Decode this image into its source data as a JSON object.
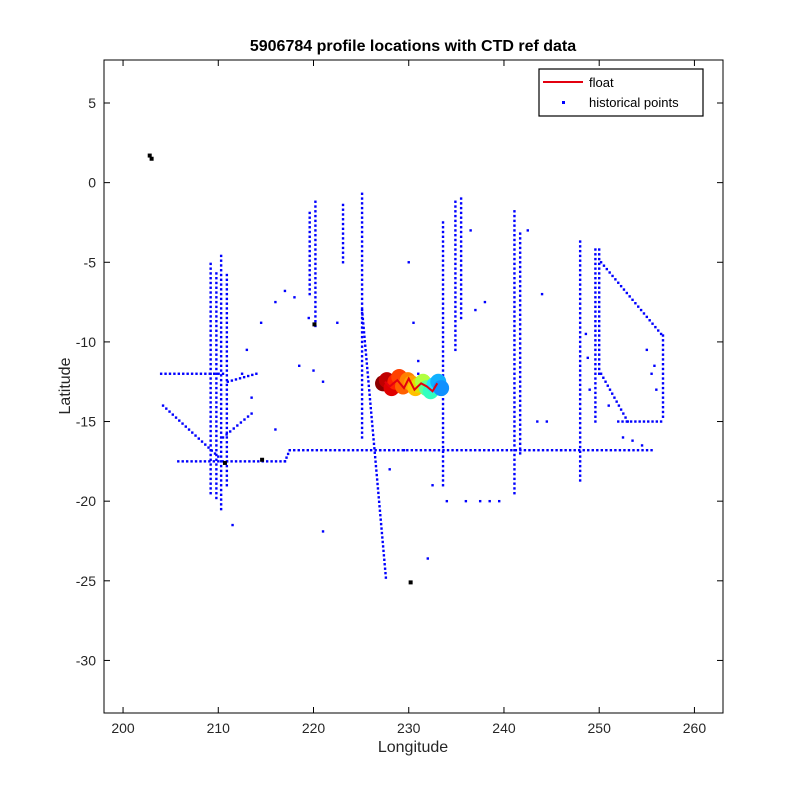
{
  "chart_data": {
    "type": "scatter",
    "title": "5906784 profile locations with CTD ref data",
    "xlabel": "Longitude",
    "ylabel": "Latitude",
    "xlim": [
      198,
      263
    ],
    "ylim": [
      -33.3,
      7.7
    ],
    "xticks": [
      200,
      210,
      220,
      230,
      240,
      250,
      260
    ],
    "yticks": [
      5,
      0,
      -5,
      -10,
      -15,
      -20,
      -25,
      -30
    ],
    "grid": false,
    "legend": {
      "position": "top-right",
      "entries": [
        "float",
        "historical points"
      ]
    },
    "colors": {
      "float_line": "#e3000f",
      "historical": "#0000ff",
      "axis": "#000000"
    },
    "series": [
      {
        "name": "float",
        "type": "line",
        "x": [
          227.5,
          228.0,
          228.8,
          229.5,
          230.0,
          230.6,
          231.3,
          231.9,
          232.5,
          233.0
        ],
        "y": [
          -12.5,
          -12.8,
          -12.4,
          -12.9,
          -12.3,
          -13.0,
          -12.6,
          -12.8,
          -13.1,
          -12.6
        ]
      },
      {
        "name": "historical points",
        "type": "scatter",
        "groups": [
          {
            "kind": "vline",
            "x": 209.2,
            "y0": -19.5,
            "y1": -5
          },
          {
            "kind": "vline",
            "x": 209.8,
            "y0": -19.8,
            "y1": -5.5
          },
          {
            "kind": "vline",
            "x": 210.3,
            "y0": -20.5,
            "y1": -4.5
          },
          {
            "kind": "vline",
            "x": 210.9,
            "y0": -19.0,
            "y1": -5.8
          },
          {
            "kind": "vline",
            "x": 225.1,
            "y0": -16.0,
            "y1": -0.7
          },
          {
            "kind": "line",
            "x0": 225.1,
            "y0": -8.0,
            "x1": 227.6,
            "y1": -24.8
          },
          {
            "kind": "vline",
            "x": 220.2,
            "y0": -9.0,
            "y1": -1.0
          },
          {
            "kind": "vline",
            "x": 219.6,
            "y0": -7.0,
            "y1": -1.8
          },
          {
            "kind": "vline",
            "x": 223.1,
            "y0": -5.0,
            "y1": -1.2
          },
          {
            "kind": "vline",
            "x": 234.9,
            "y0": -10.5,
            "y1": -1.0
          },
          {
            "kind": "vline",
            "x": 235.5,
            "y0": -8.5,
            "y1": -1.0
          },
          {
            "kind": "vline",
            "x": 233.6,
            "y0": -19.0,
            "y1": -2.3
          },
          {
            "kind": "vline",
            "x": 241.1,
            "y0": -19.5,
            "y1": -1.8
          },
          {
            "kind": "vline",
            "x": 241.7,
            "y0": -17.0,
            "y1": -3.0
          },
          {
            "kind": "vline",
            "x": 248.0,
            "y0": -18.7,
            "y1": -3.5
          },
          {
            "kind": "vline",
            "x": 249.6,
            "y0": -15.0,
            "y1": -4.0
          },
          {
            "kind": "vline",
            "x": 250.0,
            "y0": -12.0,
            "y1": -4.0
          },
          {
            "kind": "vline",
            "x": 256.7,
            "y0": -14.7,
            "y1": -9.5
          },
          {
            "kind": "line",
            "x0": 250.2,
            "y0": -5.0,
            "x1": 256.5,
            "y1": -9.5
          },
          {
            "kind": "line",
            "x0": 205.8,
            "y0": -17.5,
            "x1": 217.0,
            "y1": -17.5
          },
          {
            "kind": "line",
            "x0": 217.0,
            "y0": -17.5,
            "x1": 217.5,
            "y1": -16.8
          },
          {
            "kind": "line",
            "x0": 217.5,
            "y0": -16.8,
            "x1": 255.5,
            "y1": -16.8
          },
          {
            "kind": "line",
            "x0": 204.0,
            "y0": -12.0,
            "x1": 210.5,
            "y1": -12.0
          },
          {
            "kind": "line",
            "x0": 204.2,
            "y0": -14.0,
            "x1": 210.0,
            "y1": -17.2
          },
          {
            "kind": "line",
            "x0": 250.2,
            "y0": -12.0,
            "x1": 253.0,
            "y1": -15.0
          },
          {
            "kind": "line",
            "x0": 252.0,
            "y0": -15.0,
            "x1": 256.5,
            "y1": -15.0
          },
          {
            "kind": "line",
            "x0": 211.0,
            "y0": -12.5,
            "x1": 214.0,
            "y1": -12.0
          },
          {
            "kind": "line",
            "x0": 210.5,
            "y0": -16.0,
            "x1": 213.5,
            "y1": -14.5
          }
        ],
        "points": [
          [
            219.5,
            -8.5
          ],
          [
            218.0,
            -7.2
          ],
          [
            217.0,
            -6.8
          ],
          [
            216.0,
            -7.5
          ],
          [
            214.5,
            -8.8
          ],
          [
            213.0,
            -10.5
          ],
          [
            212.5,
            -12.0
          ],
          [
            213.5,
            -13.5
          ],
          [
            211.5,
            -21.5
          ],
          [
            216.0,
            -15.5
          ],
          [
            218.5,
            -11.5
          ],
          [
            220.0,
            -11.8
          ],
          [
            221.0,
            -12.5
          ],
          [
            221.0,
            -21.9
          ],
          [
            222.5,
            -8.8
          ],
          [
            230.0,
            -5.0
          ],
          [
            230.5,
            -8.8
          ],
          [
            231.0,
            -11.2
          ],
          [
            229.5,
            -16.8
          ],
          [
            228.0,
            -18.0
          ],
          [
            232.5,
            -19.0
          ],
          [
            232.0,
            -23.6
          ],
          [
            234.0,
            -20.0
          ],
          [
            236.0,
            -20.0
          ],
          [
            237.5,
            -20.0
          ],
          [
            238.5,
            -20.0
          ],
          [
            239.5,
            -20.0
          ],
          [
            236.5,
            -3.0
          ],
          [
            237.0,
            -8.0
          ],
          [
            238.0,
            -7.5
          ],
          [
            242.5,
            -3.0
          ],
          [
            244.0,
            -7.0
          ],
          [
            243.5,
            -15.0
          ],
          [
            244.5,
            -15.0
          ],
          [
            246.0,
            -16.8
          ],
          [
            248.6,
            -9.5
          ],
          [
            248.8,
            -11.0
          ],
          [
            249.0,
            -13.0
          ],
          [
            251.0,
            -14.0
          ],
          [
            252.5,
            -16.0
          ],
          [
            253.5,
            -16.2
          ],
          [
            255.0,
            -10.5
          ],
          [
            255.5,
            -12.0
          ],
          [
            256.0,
            -13.0
          ],
          [
            255.8,
            -11.5
          ],
          [
            254.5,
            -16.5
          ],
          [
            227.0,
            -16.8
          ],
          [
            231.0,
            -12.0
          ]
        ],
        "outliers_black": [
          [
            202.8,
            1.7
          ],
          [
            203.0,
            1.5
          ],
          [
            220.1,
            -8.9
          ],
          [
            230.2,
            -25.1
          ],
          [
            214.6,
            -17.4
          ],
          [
            210.7,
            -17.6
          ]
        ]
      },
      {
        "type": "scatter",
        "x": [
          227.3,
          227.7,
          228.2,
          228.6,
          229.0,
          229.4,
          229.9,
          230.3,
          230.7,
          231.1,
          231.5,
          231.9,
          232.3,
          232.7,
          233.1,
          233.4
        ],
        "y": [
          -12.6,
          -12.4,
          -12.9,
          -12.5,
          -12.2,
          -12.8,
          -12.4,
          -12.6,
          -12.9,
          -12.7,
          -12.5,
          -12.9,
          -13.1,
          -12.7,
          -12.5,
          -12.9
        ],
        "colors": [
          "#8b0000",
          "#c00000",
          "#e00000",
          "#ff2000",
          "#ff4000",
          "#ff6000",
          "#ff8000",
          "#ffa000",
          "#ffc000",
          "#e0e000",
          "#b0ff40",
          "#60ff90",
          "#30ffc0",
          "#20e0ff",
          "#10b0ff",
          "#1090ff"
        ]
      }
    ]
  }
}
